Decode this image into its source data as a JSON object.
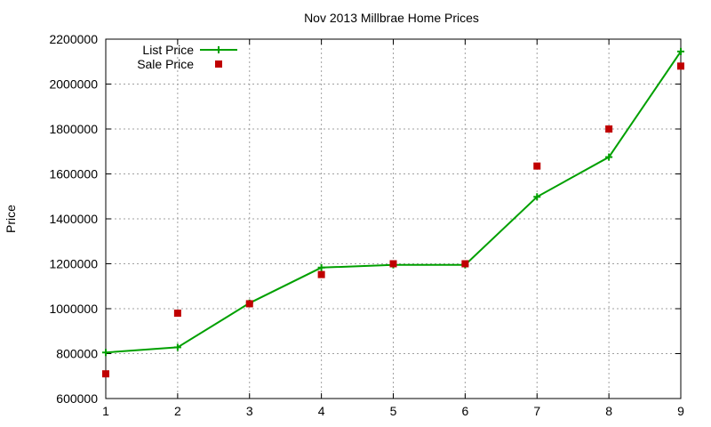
{
  "chart_data": {
    "type": "line",
    "title": "Nov 2013 Millbrae Home Prices",
    "xlabel": "",
    "ylabel": "Price",
    "x": [
      1,
      2,
      3,
      4,
      5,
      6,
      7,
      8,
      9
    ],
    "xlim": [
      1,
      9
    ],
    "ylim": [
      600000,
      2200000
    ],
    "xticks": [
      "1",
      "2",
      "3",
      "4",
      "5",
      "6",
      "7",
      "8",
      "9"
    ],
    "yticks": [
      "600000",
      "800000",
      "1000000",
      "1200000",
      "1400000",
      "1600000",
      "1800000",
      "2000000",
      "2200000"
    ],
    "grid": true,
    "legend_position": "top-left",
    "series": [
      {
        "name": "List Price",
        "style": "line-with-plus-markers",
        "color": "#00a000",
        "values": [
          805000,
          828000,
          1025000,
          1183000,
          1195000,
          1195000,
          1498000,
          1675000,
          2145000
        ]
      },
      {
        "name": "Sale Price",
        "style": "square-markers",
        "color": "#c00000",
        "values": [
          710000,
          980000,
          1022000,
          1152000,
          1200000,
          1200000,
          1635000,
          1800000,
          2080000
        ]
      }
    ]
  }
}
